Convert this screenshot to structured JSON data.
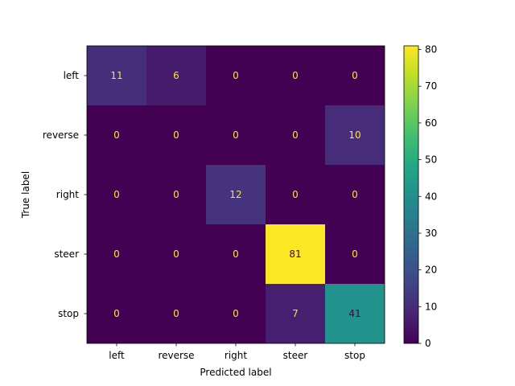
{
  "chart_data": {
    "type": "heatmap",
    "xlabel": "Predicted label",
    "ylabel": "True label",
    "x_categories": [
      "left",
      "reverse",
      "right",
      "steer",
      "stop"
    ],
    "y_categories": [
      "left",
      "reverse",
      "right",
      "steer",
      "stop"
    ],
    "matrix": [
      [
        11,
        6,
        0,
        0,
        0
      ],
      [
        0,
        0,
        0,
        0,
        10
      ],
      [
        0,
        0,
        12,
        0,
        0
      ],
      [
        0,
        0,
        0,
        81,
        0
      ],
      [
        0,
        0,
        0,
        7,
        41
      ]
    ],
    "colormap": "viridis",
    "colorbar": {
      "range": [
        0,
        81
      ],
      "ticks": [
        0,
        10,
        20,
        30,
        40,
        50,
        60,
        70,
        80
      ]
    },
    "label_colors": {
      "on_dark": "#fde725",
      "on_light": "#440154"
    }
  }
}
